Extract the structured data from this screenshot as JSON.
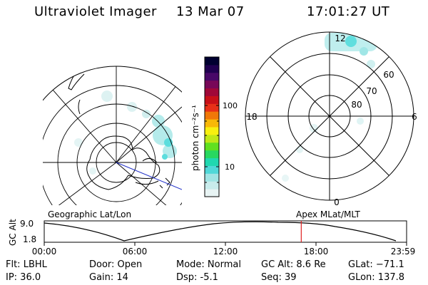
{
  "header": {
    "instrument": "Ultraviolet Imager",
    "date": "13 Mar 07",
    "time": "17:01:27 UT"
  },
  "colorbar": {
    "unit": "photon cm⁻²s⁻¹",
    "ticks": [
      "100",
      "10"
    ],
    "colors": [
      "#e8f4f4",
      "#c8ecec",
      "#a0e4e4",
      "#50d8d8",
      "#20d8b0",
      "#28d860",
      "#60e020",
      "#c0e818",
      "#f8f010",
      "#f8b808",
      "#f07808",
      "#e83018",
      "#c81018",
      "#a00838",
      "#780858",
      "#480868",
      "#200050",
      "#000030"
    ]
  },
  "polar_plot": {
    "mlt_labels": {
      "top": "12",
      "left": "18",
      "right": "6",
      "bottom": "0"
    },
    "lat_labels": [
      "60",
      "70",
      "80"
    ]
  },
  "plot_labels": {
    "left": "Geographic Lat/Lon",
    "right": "Apex MLat/MLT"
  },
  "timeline": {
    "ylabel": "GC Alt",
    "yticks": [
      "9.0",
      "1.8"
    ],
    "xticks": [
      "00:00",
      "06:00",
      "12:00",
      "18:00",
      "23:59"
    ],
    "marker_fraction": 0.7093
  },
  "info": {
    "flt": "Flt: LBHL",
    "ip": "IP: 36.0",
    "door": "Door: Open",
    "gain": "Gain: 14",
    "mode": "Mode: Normal",
    "dsp": "Dsp:    -5.1",
    "gc_alt": "GC Alt: 8.6 Re",
    "seq": "Seq: 39",
    "glat": "GLat: −71.1",
    "glon": "GLon: 137.8"
  }
}
